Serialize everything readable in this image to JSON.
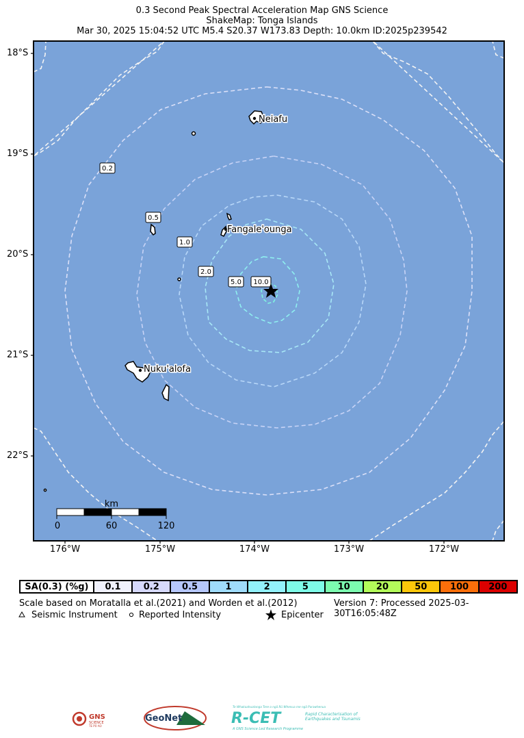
{
  "header": {
    "line1": "0.3 Second Peak Spectral Acceleration Map GNS Science",
    "line2": "ShakeMap: Tonga Islands",
    "line3": "Mar 30, 2025 15:04:52 UTC M5.4 S20.37 W173.83 Depth: 10.0km ID:2025p239542"
  },
  "map": {
    "ocean_color": "#7aa3d9",
    "lat_labels": [
      "18°S",
      "19°S",
      "20°S",
      "21°S",
      "22°S"
    ],
    "lon_labels": [
      "176°W",
      "175°W",
      "174°W",
      "173°W",
      "172°W"
    ],
    "places": [
      {
        "name": "Neiafu"
      },
      {
        "name": "Fangale'ounga"
      },
      {
        "name": "Nuku'alofa"
      }
    ],
    "contour_labels": [
      "0.2",
      "0.5",
      "1.0",
      "2.0",
      "5.0",
      "10.0"
    ],
    "scalebar": {
      "unit": "km",
      "ticks": [
        "0",
        "60",
        "120"
      ]
    }
  },
  "legend": {
    "label": "SA(0.3) (%g)",
    "items": [
      {
        "value": "0.1",
        "color": "#f0f1fc"
      },
      {
        "value": "0.2",
        "color": "#d6d9fb"
      },
      {
        "value": "0.5",
        "color": "#b6c7fb"
      },
      {
        "value": "1",
        "color": "#9fdcfb"
      },
      {
        "value": "2",
        "color": "#92f1fb"
      },
      {
        "value": "5",
        "color": "#7efbe8"
      },
      {
        "value": "10",
        "color": "#7cfbb0"
      },
      {
        "value": "20",
        "color": "#b3fb5a"
      },
      {
        "value": "50",
        "color": "#fbc70a"
      },
      {
        "value": "100",
        "color": "#fb6f0a"
      },
      {
        "value": "200",
        "color": "#db0000"
      }
    ]
  },
  "notes": {
    "scale": "Scale based on Moratalla et al.(2021) and Worden et al.(2012)",
    "version": "Version 7: Processed 2025-03-30T16:05:48Z",
    "seismic": "Seismic Instrument",
    "reported": "Reported Intensity",
    "epicenter": "Epicenter"
  },
  "logos": {
    "gns": "GNS",
    "gns_sub": "SCIENCE",
    "gns_sub2": "TE PŪ AO",
    "geonet": "GeoNet",
    "rcet": "R-CET",
    "rcet_top": "Te Whakaahuatanga Tere o ngā Rū Whenua me ngā Parawhenua",
    "rcet_right1": "Rapid Characterisation of",
    "rcet_right2": "Earthquakes and Tsunamis",
    "rcet_bottom": "A GNS Science Led Research Programme"
  }
}
